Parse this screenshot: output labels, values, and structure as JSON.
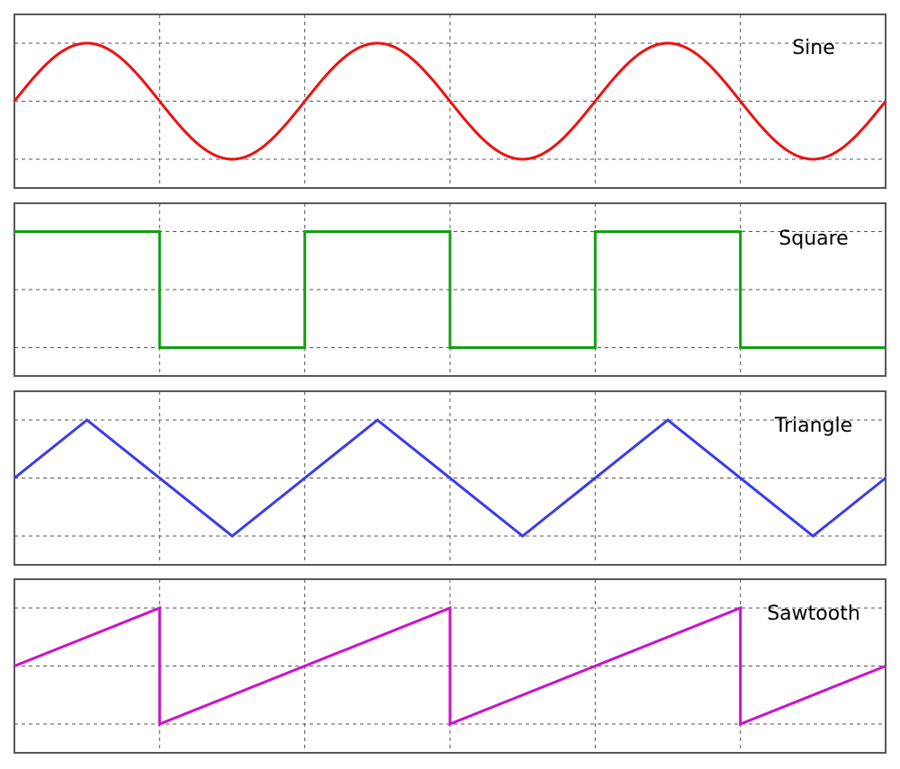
{
  "chart_data": [
    {
      "type": "line",
      "panel": "sine",
      "annotation": "Sine",
      "color": "#ee1111",
      "xlim": [
        0,
        3
      ],
      "ylim": [
        -1.25,
        1.25
      ],
      "grid": true,
      "series": [
        {
          "x": [
            0,
            0.125,
            0.25,
            0.375,
            0.5,
            0.625,
            0.75,
            0.875,
            1,
            1.125,
            1.25,
            1.375,
            1.5,
            1.625,
            1.75,
            1.875,
            2,
            2.125,
            2.25,
            2.375,
            2.5,
            2.625,
            2.75,
            2.875,
            3
          ],
          "y": [
            0,
            0.707,
            1,
            0.707,
            0,
            -0.707,
            -1,
            -0.707,
            0,
            0.707,
            1,
            0.707,
            0,
            -0.707,
            -1,
            -0.707,
            0,
            0.707,
            1,
            0.707,
            0,
            -0.707,
            -1,
            -0.707,
            0
          ]
        }
      ]
    },
    {
      "type": "line",
      "panel": "square",
      "annotation": "Square",
      "color": "#11a011",
      "xlim": [
        0,
        3
      ],
      "ylim": [
        -1.25,
        1.25
      ],
      "grid": true,
      "series": [
        {
          "x": [
            0,
            0.5,
            0.5,
            1,
            1,
            1.5,
            1.5,
            2,
            2,
            2.5,
            2.5,
            3
          ],
          "y": [
            1,
            1,
            -1,
            -1,
            1,
            1,
            -1,
            -1,
            1,
            1,
            -1,
            -1
          ]
        }
      ]
    },
    {
      "type": "line",
      "panel": "triangle",
      "annotation": "Triangle",
      "color": "#3a3aee",
      "xlim": [
        0,
        3
      ],
      "ylim": [
        -1.25,
        1.25
      ],
      "grid": true,
      "series": [
        {
          "x": [
            0,
            0.25,
            0.75,
            1.25,
            1.75,
            2.25,
            2.75,
            3
          ],
          "y": [
            0,
            1,
            -1,
            1,
            -1,
            1,
            -1,
            0
          ]
        }
      ]
    },
    {
      "type": "line",
      "panel": "sawtooth",
      "annotation": "Sawtooth",
      "color": "#cc11cc",
      "xlim": [
        0,
        3
      ],
      "ylim": [
        -1.25,
        1.25
      ],
      "grid": true,
      "series": [
        {
          "x": [
            0,
            0.5,
            0.5,
            1.5,
            1.5,
            2.5,
            2.5,
            3
          ],
          "y": [
            0,
            1,
            -1,
            1,
            -1,
            1,
            -1,
            0
          ]
        }
      ]
    }
  ]
}
